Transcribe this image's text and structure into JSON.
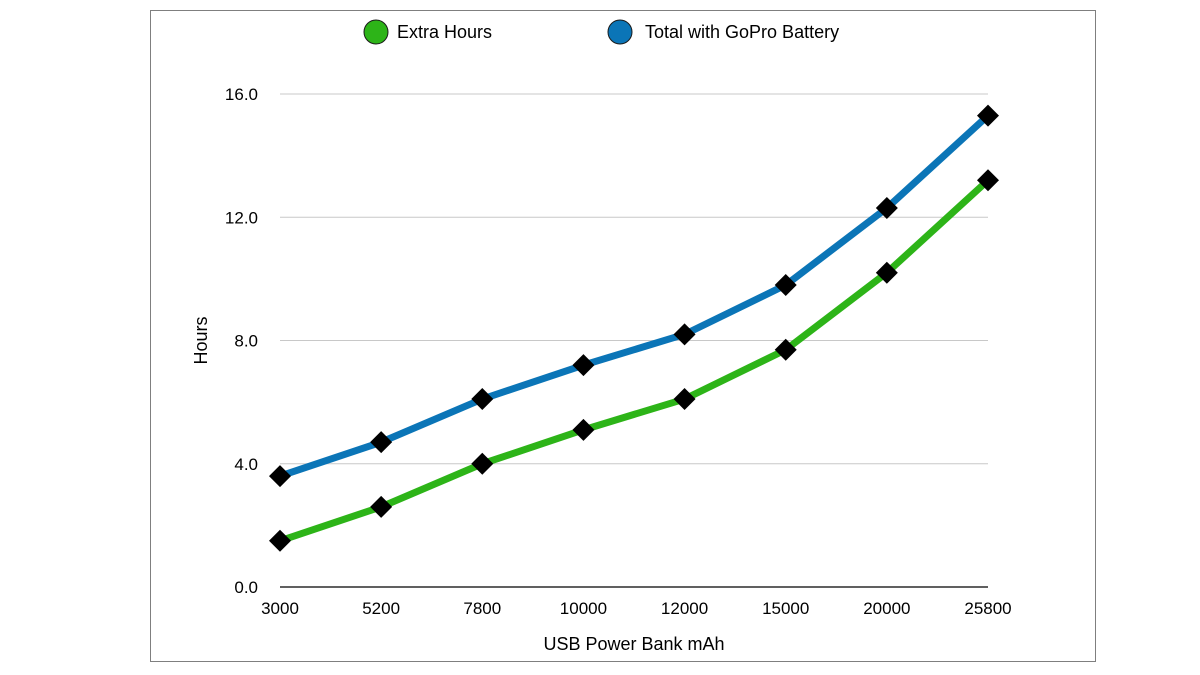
{
  "chart_data": {
    "type": "line",
    "title": "",
    "xlabel": "USB Power Bank mAh",
    "ylabel": "Hours",
    "categories": [
      "3000",
      "5200",
      "7800",
      "10000",
      "12000",
      "15000",
      "20000",
      "25800"
    ],
    "ylim": [
      0,
      16
    ],
    "yticks": [
      0,
      4,
      8,
      12,
      16
    ],
    "ytick_labels": [
      "0.0",
      "4.0",
      "8.0",
      "12.0",
      "16.0"
    ],
    "grid": true,
    "legend_position": "top",
    "marker": "diamond",
    "series": [
      {
        "name": "Extra Hours",
        "color": "#2db418",
        "values": [
          1.5,
          2.6,
          4.0,
          5.1,
          6.1,
          7.7,
          10.2,
          13.2
        ]
      },
      {
        "name": "Total with GoPro Battery",
        "color": "#0b75b7",
        "values": [
          3.6,
          4.7,
          6.1,
          7.2,
          8.2,
          9.8,
          12.3,
          15.3
        ]
      }
    ]
  }
}
